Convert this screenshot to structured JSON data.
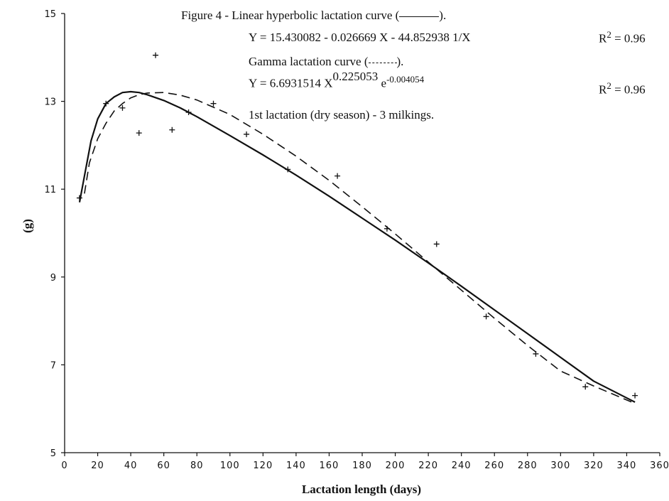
{
  "chart_data": {
    "type": "line",
    "annotations": {
      "fig_title_before": "Figure 4 - Linear hyperbolic lactation curve (",
      "fig_title_after": ").",
      "eq1": "Y = 15.430082 - 0.026669 X - 44.852938 1/X",
      "r2_1_base": "R",
      "r2_1_exp": "2",
      "r2_1_val": " = 0.96",
      "gamma_before": "Gamma lactation curve (",
      "gamma_after": ").",
      "eq2_base": "Y = 6.6931514 X",
      "eq2_exp1": "0.225053",
      "eq2_e": " e",
      "eq2_exp2": "-0.004054",
      "r2_2_base": "R",
      "r2_2_exp": "2",
      "r2_2_val": " = 0.96",
      "note": "1st lactation (dry season) - 3 milkings."
    },
    "xlabel": "Lactation length (days)",
    "ylabel": "(g)",
    "xlim": [
      0,
      360
    ],
    "ylim": [
      5,
      15
    ],
    "xticks": [
      0,
      20,
      40,
      60,
      80,
      100,
      120,
      140,
      160,
      180,
      200,
      220,
      240,
      260,
      280,
      300,
      320,
      340,
      360
    ],
    "yticks": [
      5,
      7,
      9,
      11,
      13,
      15
    ],
    "series": [
      {
        "style": "solid",
        "x": [
          9,
          12,
          16,
          20,
          25,
          30,
          35,
          40,
          45,
          50,
          60,
          70,
          80,
          100,
          120,
          140,
          160,
          180,
          200,
          220,
          240,
          260,
          280,
          300,
          320,
          345
        ],
        "y": [
          10.7,
          11.3,
          12.1,
          12.6,
          12.95,
          13.1,
          13.2,
          13.22,
          13.2,
          13.15,
          13.02,
          12.85,
          12.65,
          12.22,
          11.78,
          11.32,
          10.84,
          10.34,
          9.84,
          9.32,
          8.79,
          8.25,
          7.71,
          7.17,
          6.63,
          6.15
        ]
      },
      {
        "style": "dashed",
        "x": [
          12,
          15,
          20,
          25,
          30,
          35,
          40,
          45,
          50,
          60,
          70,
          80,
          100,
          120,
          140,
          160,
          180,
          200,
          220,
          240,
          260,
          280,
          300,
          320,
          345
        ],
        "y": [
          10.9,
          11.6,
          12.15,
          12.5,
          12.78,
          12.95,
          13.08,
          13.15,
          13.19,
          13.2,
          13.14,
          13.03,
          12.7,
          12.25,
          11.75,
          11.2,
          10.6,
          9.98,
          9.34,
          8.7,
          8.06,
          7.44,
          6.86,
          6.52,
          6.12
        ]
      }
    ],
    "points": {
      "x": [
        9,
        25,
        35,
        45,
        55,
        65,
        75,
        90,
        110,
        135,
        165,
        195,
        225,
        255,
        285,
        315,
        345
      ],
      "y": [
        10.8,
        12.95,
        12.85,
        12.28,
        14.05,
        12.35,
        12.75,
        12.95,
        12.25,
        11.45,
        11.3,
        10.1,
        9.75,
        8.1,
        7.25,
        6.5,
        6.3
      ]
    }
  }
}
